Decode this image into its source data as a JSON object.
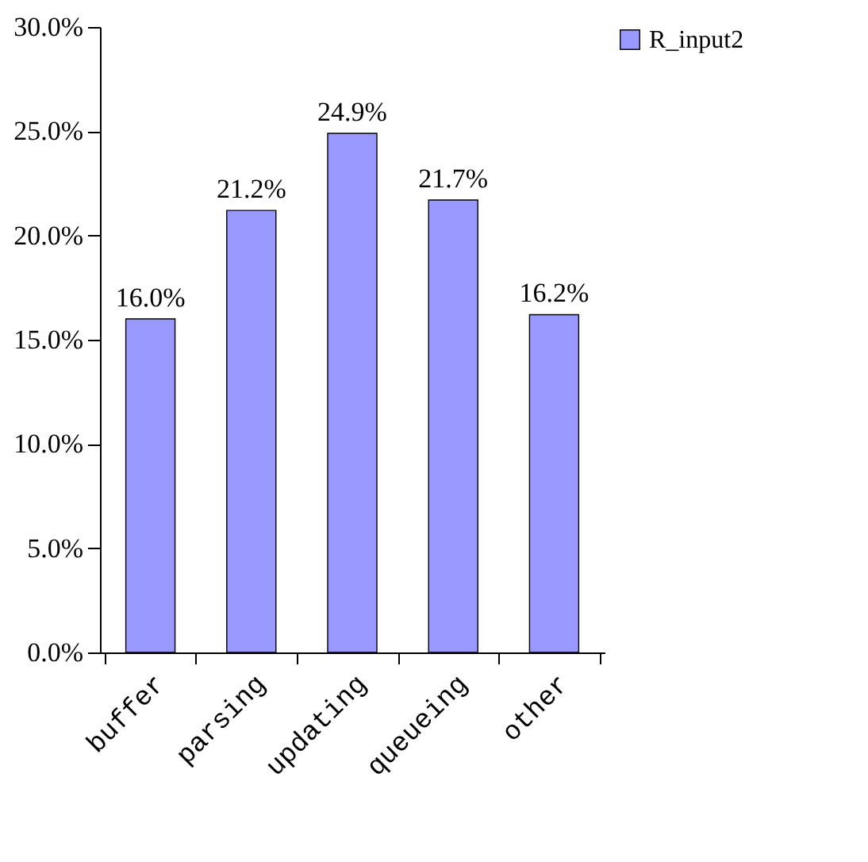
{
  "chart_data": {
    "type": "bar",
    "categories": [
      "buffer",
      "parsing",
      "updating",
      "queueing",
      "other"
    ],
    "series": [
      {
        "name": "R_input2",
        "color": "#9999ff",
        "values": [
          16.0,
          21.2,
          24.9,
          21.7,
          16.2
        ],
        "value_labels": [
          "16.0%",
          "21.2%",
          "24.9%",
          "21.7%",
          "16.2%"
        ]
      }
    ],
    "ylim": [
      0,
      30
    ],
    "yticks": [
      {
        "value": 0,
        "label": "0.0%"
      },
      {
        "value": 5,
        "label": "5.0%"
      },
      {
        "value": 10,
        "label": "10.0%"
      },
      {
        "value": 15,
        "label": "15.0%"
      },
      {
        "value": 20,
        "label": "20.0%"
      },
      {
        "value": 25,
        "label": "25.0%"
      },
      {
        "value": 30,
        "label": "30.0%"
      }
    ],
    "legend": "top right",
    "grid": false
  }
}
